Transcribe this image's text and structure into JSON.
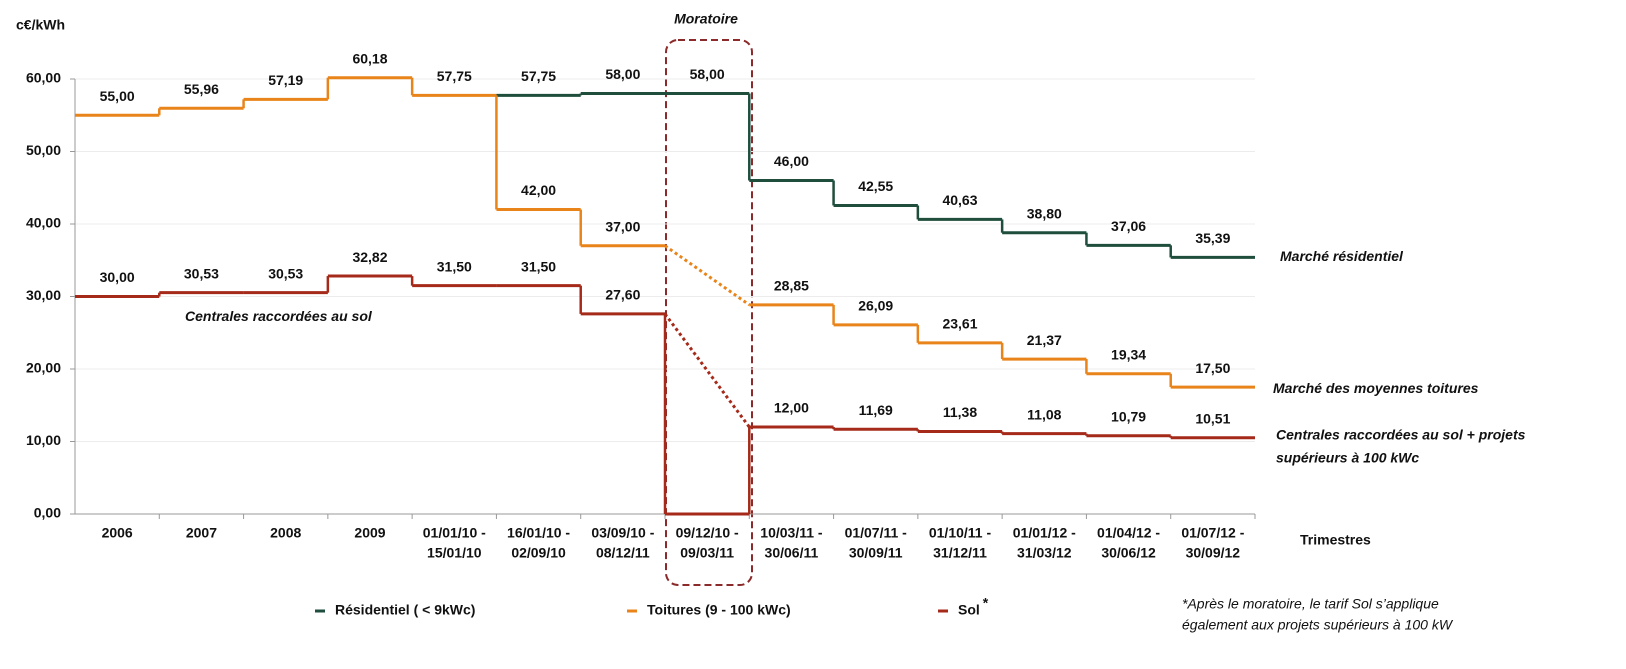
{
  "chart_data": {
    "type": "step",
    "y_label": "c€/kWh",
    "x_label": "Trimestres",
    "categories": [
      [
        "2006"
      ],
      [
        "2007"
      ],
      [
        "2008"
      ],
      [
        "2009"
      ],
      [
        "01/01/10 -",
        "15/01/10"
      ],
      [
        "16/01/10 -",
        "02/09/10"
      ],
      [
        "03/09/10 -",
        "08/12/11"
      ],
      [
        "09/12/10 -",
        "09/03/11"
      ],
      [
        "10/03/11 -",
        "30/06/11"
      ],
      [
        "01/07/11 -",
        "30/09/11"
      ],
      [
        "01/10/11 -",
        "31/12/11"
      ],
      [
        "01/01/12 -",
        "31/03/12"
      ],
      [
        "01/04/12 -",
        "30/06/12"
      ],
      [
        "01/07/12 -",
        "30/09/12"
      ]
    ],
    "series": [
      {
        "name": "Résidentiel ( < 9kWc)",
        "color": "#1f4e3d",
        "values": [
          null,
          null,
          null,
          null,
          null,
          57.75,
          58.0,
          58.0,
          46.0,
          42.55,
          40.63,
          38.8,
          37.06,
          35.39
        ],
        "value_labels": [
          null,
          null,
          null,
          null,
          null,
          "57,75",
          "58,00",
          "58,00",
          "46,00",
          "42,55",
          "40,63",
          "38,80",
          "37,06",
          "35,39"
        ]
      },
      {
        "name": "Toitures (9 - 100 kWc)",
        "color": "#e8841a",
        "dotted_gap": true,
        "values": [
          55.0,
          55.96,
          57.19,
          60.18,
          57.75,
          42.0,
          37.0,
          null,
          28.85,
          26.09,
          23.61,
          21.37,
          19.34,
          17.5
        ],
        "value_labels": [
          "55,00",
          "55,96",
          "57,19",
          "60,18",
          "57,75",
          "42,00",
          "37,00",
          null,
          "28,85",
          "26,09",
          "23,61",
          "21,37",
          "19,34",
          "17,50"
        ]
      },
      {
        "name": "Sol",
        "color": "#a52a1a",
        "dotted_gap": true,
        "legend_note": "*",
        "values": [
          30.0,
          30.53,
          30.53,
          32.82,
          31.5,
          31.5,
          27.6,
          0,
          12.0,
          11.69,
          11.38,
          11.08,
          10.79,
          10.51
        ],
        "value_labels": [
          "30,00",
          "30,53",
          "30,53",
          "32,82",
          "31,50",
          "31,50",
          "27,60",
          null,
          "12,00",
          "11,69",
          "11,38",
          "11,08",
          "10,79",
          "10,51"
        ]
      }
    ],
    "ylim": [
      0,
      60
    ],
    "yticks": [
      {
        "value": 0,
        "label": "0,00"
      },
      {
        "value": 10,
        "label": "10,00"
      },
      {
        "value": 20,
        "label": "20,00"
      },
      {
        "value": 30,
        "label": "30,00"
      },
      {
        "value": 40,
        "label": "40,00"
      },
      {
        "value": 50,
        "label": "50,00"
      },
      {
        "value": 60,
        "label": "60,00"
      }
    ],
    "grid": true,
    "moratoire_label": "Moratoire",
    "annotations": [
      [
        "Marché résidentiel"
      ],
      [
        "Marché des moyennes toitures"
      ],
      [
        "Centrales raccordées au sol + projets",
        "supérieurs à 100 kWc"
      ],
      [
        "Centrales raccordées au sol"
      ]
    ],
    "footnote": [
      "*Après le moratoire, le tarif Sol s’applique",
      "également aux projets supérieurs à 100 kW"
    ]
  }
}
